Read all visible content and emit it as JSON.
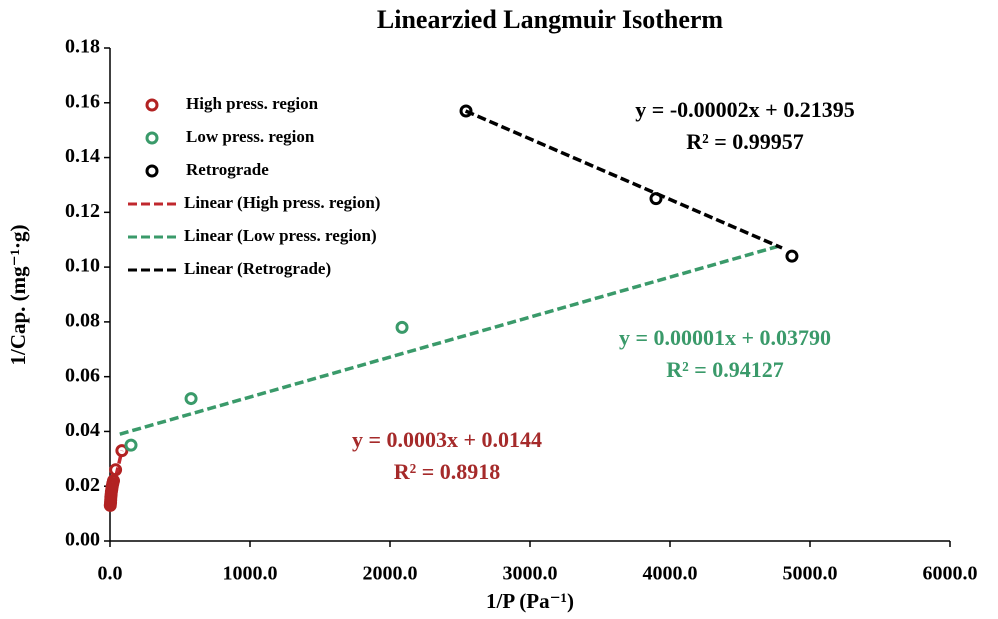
{
  "chart_data": {
    "type": "scatter",
    "title": "Linearzied Langmuir Isotherm",
    "xlabel": "1/P (Pa⁻¹)",
    "ylabel": "1/Cap. (mg⁻¹·g)",
    "xlim": [
      0,
      6000
    ],
    "ylim": [
      0,
      0.18
    ],
    "xticks": [
      {
        "value": 0,
        "label": "0.0"
      },
      {
        "value": 1000,
        "label": "1000.0"
      },
      {
        "value": 2000,
        "label": "2000.0"
      },
      {
        "value": 3000,
        "label": "3000.0"
      },
      {
        "value": 4000,
        "label": "4000.0"
      },
      {
        "value": 5000,
        "label": "5000.0"
      },
      {
        "value": 6000,
        "label": "6000.0"
      }
    ],
    "yticks": [
      {
        "value": 0,
        "label": "0.00"
      },
      {
        "value": 0.02,
        "label": "0.02"
      },
      {
        "value": 0.04,
        "label": "0.04"
      },
      {
        "value": 0.06,
        "label": "0.06"
      },
      {
        "value": 0.08,
        "label": "0.08"
      },
      {
        "value": 0.1,
        "label": "0.10"
      },
      {
        "value": 0.12,
        "label": "0.12"
      },
      {
        "value": 0.14,
        "label": "0.14"
      },
      {
        "value": 0.16,
        "label": "0.16"
      },
      {
        "value": 0.18,
        "label": "0.18"
      }
    ],
    "series": [
      {
        "name": "High press. region",
        "color": "#b22222",
        "mode": "markers",
        "x": [
          2,
          4,
          5,
          6,
          8,
          10,
          13,
          16,
          20,
          25,
          40,
          85
        ],
        "values": [
          0.013,
          0.014,
          0.015,
          0.016,
          0.017,
          0.018,
          0.019,
          0.02,
          0.021,
          0.022,
          0.026,
          0.033
        ]
      },
      {
        "name": "Low press. region",
        "color": "#3a9a6a",
        "mode": "markers",
        "x": [
          150,
          579,
          2086
        ],
        "values": [
          0.035,
          0.052,
          0.078
        ]
      },
      {
        "name": "Retrograde",
        "color": "#000000",
        "mode": "markers",
        "x": [
          2543,
          3900,
          4871
        ],
        "values": [
          0.157,
          0.125,
          0.104
        ]
      },
      {
        "name": "Linear (High press. region)",
        "color": "#c0282e",
        "mode": "lines",
        "x": [
          0,
          85
        ],
        "values": [
          0.0144,
          0.033
        ]
      },
      {
        "name": "Linear (Low press. region)",
        "color": "#3a9a6a",
        "mode": "lines",
        "x": [
          70,
          4800
        ],
        "values": [
          0.039,
          0.108
        ]
      },
      {
        "name": "Linear (Retrograde)",
        "color": "#000000",
        "mode": "lines",
        "x": [
          2540,
          4800
        ],
        "values": [
          0.157,
          0.107
        ]
      }
    ],
    "annotations": [
      {
        "lines": [
          "y = -0.00002x + 0.21395",
          "R² = 0.99957"
        ],
        "color": "#000000"
      },
      {
        "lines": [
          "y = 0.00001x + 0.03790",
          "R² = 0.94127"
        ],
        "color": "#3a9a6a"
      },
      {
        "lines": [
          "y = 0.0003x + 0.0144",
          "R² = 0.8918"
        ],
        "color": "#a52a2a"
      }
    ]
  }
}
